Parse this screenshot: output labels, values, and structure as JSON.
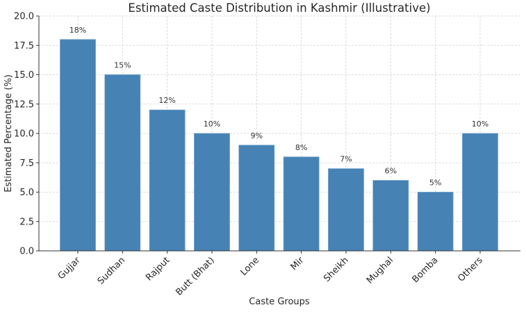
{
  "chart_data": {
    "type": "bar",
    "title": "Estimated Caste Distribution in Kashmir (Illustrative)",
    "xlabel": "Caste Groups",
    "ylabel": "Estimated Percentage (%)",
    "categories": [
      "Gujjar",
      "Sudhan",
      "Rajput",
      "Butt (Bhat)",
      "Lone",
      "Mir",
      "Sheikh",
      "Mughal",
      "Bomba",
      "Others"
    ],
    "values": [
      18,
      15,
      12,
      10,
      9,
      8,
      7,
      6,
      5,
      10
    ],
    "data_labels": [
      "18%",
      "15%",
      "12%",
      "10%",
      "9%",
      "8%",
      "7%",
      "6%",
      "5%",
      "10%"
    ],
    "ylim": [
      0,
      20
    ],
    "yticks": [
      "0.0",
      "2.5",
      "5.0",
      "7.5",
      "10.0",
      "12.5",
      "15.0",
      "17.5",
      "20.0"
    ],
    "grid": true,
    "bar_color": "#4682b4"
  }
}
